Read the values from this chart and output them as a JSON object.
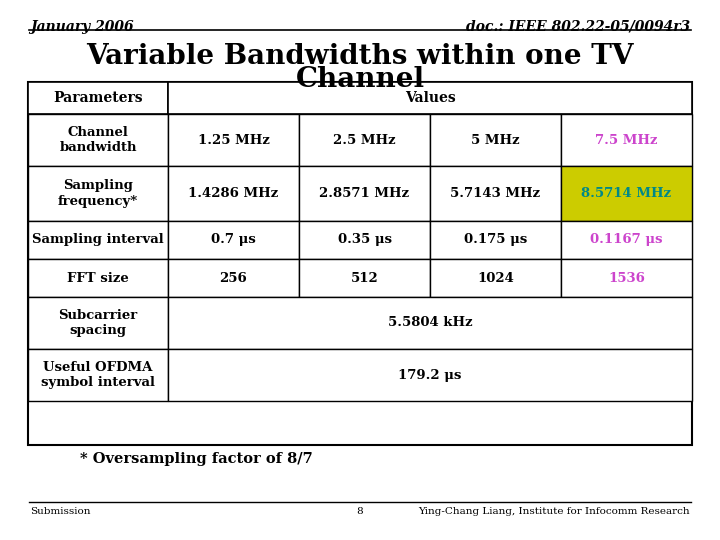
{
  "header_left": "January 2006",
  "header_right": "doc.: IEEE 802.22-05/0094r3",
  "title_line1": "Variable Bandwidths within one TV",
  "title_line2": "Channel",
  "col_header_param": "Parameters",
  "col_header_values": "Values",
  "col_labels": [
    "1.25 MHz",
    "2.5 MHz",
    "5 MHz",
    "7.5 MHz"
  ],
  "col_label_colors": [
    "#000000",
    "#000000",
    "#000000",
    "#cc44cc"
  ],
  "rows": [
    {
      "param": "Channel\nbandwidth",
      "values": [
        "1.25 MHz",
        "2.5 MHz",
        "5 MHz",
        "7.5 MHz"
      ],
      "value_colors": [
        "#000000",
        "#000000",
        "#000000",
        "#cc44cc"
      ],
      "bg_colors": [
        "#ffffff",
        "#ffffff",
        "#ffffff",
        "#ffffff"
      ]
    },
    {
      "param": "Sampling\nfrequency*",
      "values": [
        "1.4286 MHz",
        "2.8571 MHz",
        "5.7143 MHz",
        "8.5714 MHz"
      ],
      "value_colors": [
        "#000000",
        "#000000",
        "#000000",
        "#008888"
      ],
      "bg_colors": [
        "#ffffff",
        "#ffffff",
        "#ffffff",
        "#cccc00"
      ]
    },
    {
      "param": "Sampling interval",
      "values": [
        "0.7 μs",
        "0.35 μs",
        "0.175 μs",
        "0.1167 μs"
      ],
      "value_colors": [
        "#000000",
        "#000000",
        "#000000",
        "#cc44cc"
      ],
      "bg_colors": [
        "#ffffff",
        "#ffffff",
        "#ffffff",
        "#ffffff"
      ]
    },
    {
      "param": "FFT size",
      "values": [
        "256",
        "512",
        "1024",
        "1536"
      ],
      "value_colors": [
        "#000000",
        "#000000",
        "#000000",
        "#cc44cc"
      ],
      "bg_colors": [
        "#ffffff",
        "#ffffff",
        "#ffffff",
        "#ffffff"
      ]
    },
    {
      "param": "Subcarrier\nspacing",
      "values": [
        "5.5804 kHz"
      ],
      "span": 4,
      "value_colors": [
        "#000000"
      ],
      "bg_colors": [
        "#ffffff"
      ]
    },
    {
      "param": "Useful OFDMA\nsymbol interval",
      "values": [
        "179.2 μs"
      ],
      "span": 4,
      "value_colors": [
        "#000000"
      ],
      "bg_colors": [
        "#ffffff"
      ]
    }
  ],
  "footnote": "* Oversampling factor of 8/7",
  "footer_left": "Submission",
  "footer_center": "8",
  "footer_right": "Ying-Chang Liang, Institute for Infocomm Research",
  "bg_color": "#ffffff",
  "table_border_color": "#000000",
  "yellow_bg": "#cccc00",
  "pink_color": "#cc44cc",
  "teal_color": "#008888"
}
